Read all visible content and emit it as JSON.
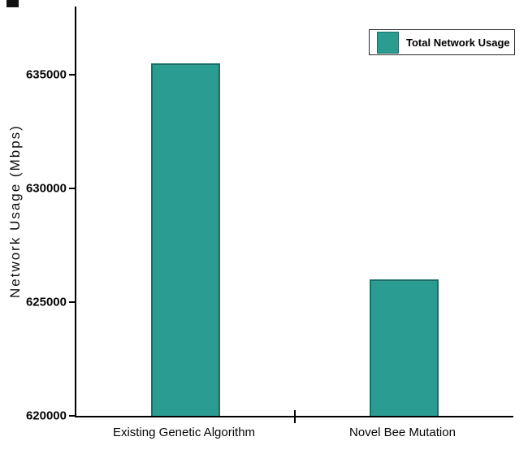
{
  "chart_data": {
    "type": "bar",
    "title": "",
    "xlabel": "",
    "ylabel": "Network Usage (Mbps)",
    "categories": [
      "Existing Genetic Algorithm",
      "Novel Bee Mutation"
    ],
    "values": [
      635500,
      626000
    ],
    "series": [
      {
        "name": "Total Network Usage",
        "values": [
          635500,
          626000
        ]
      }
    ],
    "legend_label": "Total Network Usage",
    "legend_position": "top-right",
    "ylim": [
      620000,
      638000
    ],
    "yticks": [
      620000,
      625000,
      630000,
      635000
    ],
    "ytick_labels": [
      "620000",
      "625000",
      "630000",
      "635000"
    ],
    "grid": false,
    "bar_color": "#2a9c92",
    "bar_edge_color": "#1a6e67",
    "axis_color": "#000000"
  }
}
